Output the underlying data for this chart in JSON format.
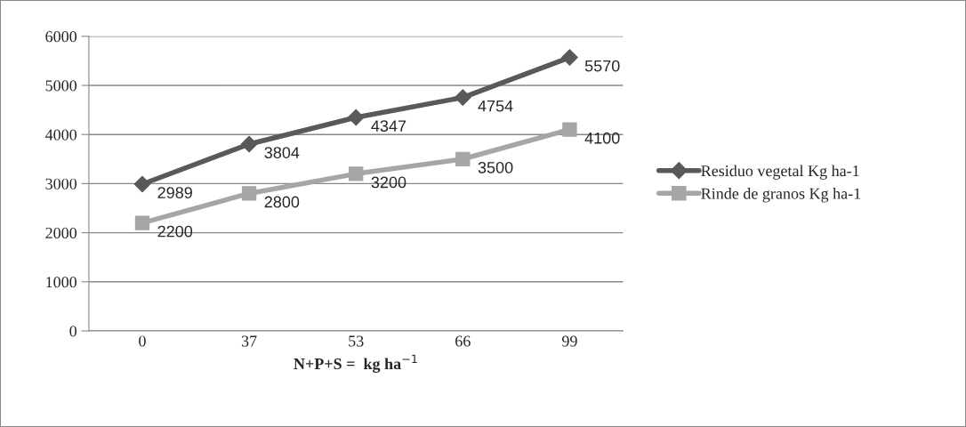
{
  "chart_data": {
    "type": "line",
    "xlabel": "N+P+S =  kg ha$^{−1}$",
    "categories": [
      "0",
      "37",
      "53",
      "66",
      "99"
    ],
    "series": [
      {
        "name": "Residuo vegetal Kg ha-1",
        "color": "#595959",
        "marker": "diamond",
        "values": [
          2989,
          3804,
          4347,
          4754,
          5570
        ]
      },
      {
        "name": "Rinde de granos Kg ha-1",
        "color": "#a6a6a6",
        "marker": "square",
        "values": [
          2200,
          2800,
          3200,
          3500,
          4100
        ]
      }
    ],
    "ylim": [
      0,
      6000
    ],
    "yticks": [
      0,
      1000,
      2000,
      3000,
      4000,
      5000,
      6000
    ],
    "grid": "y",
    "legend": "right",
    "data_labels": true,
    "line_style": "solid"
  }
}
